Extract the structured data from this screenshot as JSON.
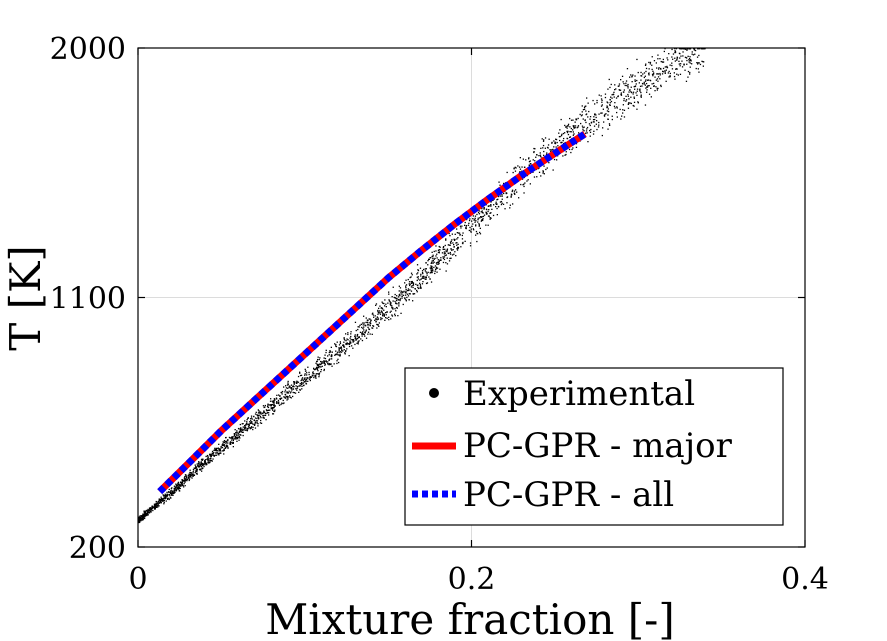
{
  "chart_data": {
    "type": "scatter",
    "title": "",
    "xlabel": "Mixture fraction [-]",
    "ylabel": "T [K]",
    "xlim": [
      0,
      0.4
    ],
    "ylim": [
      200,
      2000
    ],
    "xticks": [
      0,
      0.2,
      0.4
    ],
    "xtick_labels": [
      "0",
      "0.2",
      "0.4"
    ],
    "yticks": [
      200,
      1100,
      2000
    ],
    "ytick_labels": [
      "200",
      "1100",
      "2000"
    ],
    "grid": true,
    "legend_position": "bottom-right",
    "series": [
      {
        "name": "Experimental",
        "style": "scatter",
        "color": "#000000",
        "x": [
          0.0,
          0.02,
          0.04,
          0.06,
          0.08,
          0.1,
          0.12,
          0.14,
          0.16,
          0.18,
          0.2,
          0.22,
          0.24,
          0.26,
          0.28,
          0.3,
          0.32,
          0.34
        ],
        "y": [
          300,
          400,
          510,
          610,
          710,
          810,
          910,
          1010,
          1120,
          1240,
          1360,
          1480,
          1600,
          1700,
          1790,
          1870,
          1950,
          2000
        ]
      },
      {
        "name": "PC-GPR - major",
        "style": "solid",
        "color": "#ff0000",
        "x": [
          0.013,
          0.03,
          0.05,
          0.07,
          0.09,
          0.11,
          0.13,
          0.15,
          0.17,
          0.19,
          0.21,
          0.23,
          0.25,
          0.268
        ],
        "y": [
          400,
          500,
          620,
          730,
          840,
          950,
          1060,
          1170,
          1270,
          1365,
          1455,
          1540,
          1620,
          1690
        ]
      },
      {
        "name": "PC-GPR - all",
        "style": "dotted",
        "color": "#0000ff",
        "x": [
          0.013,
          0.03,
          0.05,
          0.07,
          0.09,
          0.11,
          0.13,
          0.15,
          0.17,
          0.19,
          0.21,
          0.23,
          0.25,
          0.268
        ],
        "y": [
          400,
          500,
          620,
          730,
          840,
          950,
          1060,
          1170,
          1270,
          1365,
          1455,
          1540,
          1620,
          1690
        ]
      }
    ]
  }
}
